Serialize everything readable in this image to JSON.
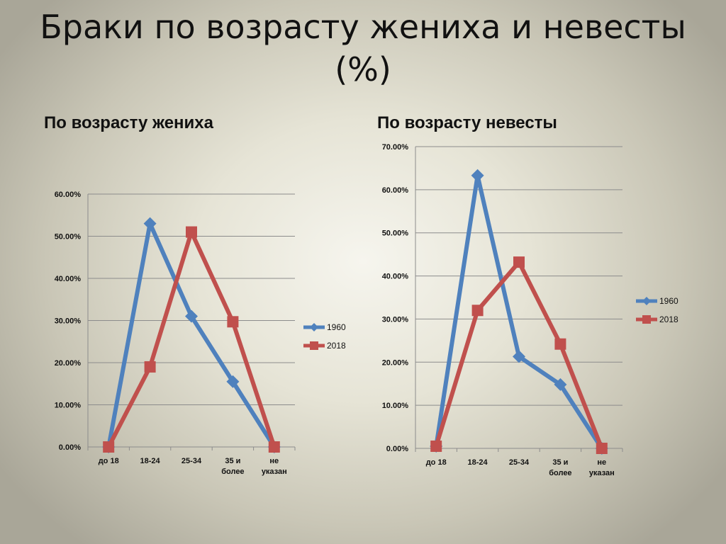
{
  "slide": {
    "title_line1": "Браки по возрасту жениха и невесты",
    "title_line2": "(%)"
  },
  "chart_data": [
    {
      "type": "line",
      "title": "По возрасту жениха",
      "categories": [
        "до 18",
        "18-24",
        "25-34",
        "35 и более",
        "не указан"
      ],
      "category_lines": [
        [
          "до 18"
        ],
        [
          "18-24"
        ],
        [
          "25-34"
        ],
        [
          "35 и",
          "более"
        ],
        [
          "не",
          "указан"
        ]
      ],
      "ylim": [
        0,
        0.6
      ],
      "yticks": [
        0,
        0.1,
        0.2,
        0.3,
        0.4,
        0.5,
        0.6
      ],
      "ytick_labels": [
        "0.00%",
        "10.00%",
        "20.00%",
        "30.00%",
        "40.00%",
        "50.00%",
        "60.00%"
      ],
      "grid": true,
      "legend_position": "right",
      "series": [
        {
          "name": "1960",
          "values": [
            0.0,
            0.53,
            0.31,
            0.155,
            0.0
          ],
          "color": "#4f81bd",
          "marker": "diamond"
        },
        {
          "name": "2018",
          "values": [
            0.0,
            0.19,
            0.51,
            0.297,
            0.0
          ],
          "color": "#c0504d",
          "marker": "square"
        }
      ]
    },
    {
      "type": "line",
      "title": "По возрасту невесты",
      "categories": [
        "до 18",
        "18-24",
        "25-34",
        "35 и более",
        "не указан"
      ],
      "category_lines": [
        [
          "до 18"
        ],
        [
          "18-24"
        ],
        [
          "25-34"
        ],
        [
          "35 и",
          "более"
        ],
        [
          "не",
          "указан"
        ]
      ],
      "ylim": [
        0,
        0.7
      ],
      "yticks": [
        0,
        0.1,
        0.2,
        0.3,
        0.4,
        0.5,
        0.6,
        0.7
      ],
      "ytick_labels": [
        "0.00%",
        "10.00%",
        "20.00%",
        "30.00%",
        "40.00%",
        "50.00%",
        "60.00%",
        "70.00%"
      ],
      "grid": true,
      "legend_position": "right",
      "series": [
        {
          "name": "1960",
          "values": [
            0.005,
            0.633,
            0.213,
            0.148,
            0.0
          ],
          "color": "#4f81bd",
          "marker": "diamond"
        },
        {
          "name": "2018",
          "values": [
            0.005,
            0.32,
            0.432,
            0.242,
            0.0
          ],
          "color": "#c0504d",
          "marker": "square"
        }
      ]
    }
  ]
}
